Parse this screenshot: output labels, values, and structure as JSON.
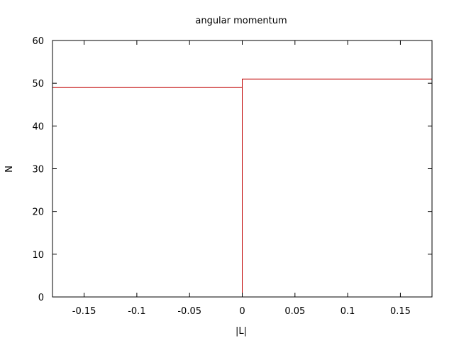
{
  "chart_data": {
    "type": "line",
    "title": "angular momentum",
    "xlabel": "|L|",
    "ylabel": "N",
    "xlim": [
      -0.18,
      0.18
    ],
    "ylim": [
      0,
      60
    ],
    "x_ticks": [
      -0.15,
      -0.1,
      -0.05,
      0,
      0.05,
      0.1,
      0.15
    ],
    "x_tick_labels": [
      "-0.15",
      "-0.1",
      "-0.05",
      "0",
      "0.05",
      "0.1",
      "0.15"
    ],
    "y_ticks": [
      0,
      10,
      20,
      30,
      40,
      50,
      60
    ],
    "y_tick_labels": [
      "0",
      "10",
      "20",
      "30",
      "40",
      "50",
      "60"
    ],
    "grid": false,
    "line_style": "steps",
    "series": [
      {
        "color": "#c00000",
        "x": [
          -0.18,
          0,
          0,
          0.18
        ],
        "y": [
          49,
          49,
          51,
          51
        ],
        "drop_at_x": 0
      }
    ]
  }
}
